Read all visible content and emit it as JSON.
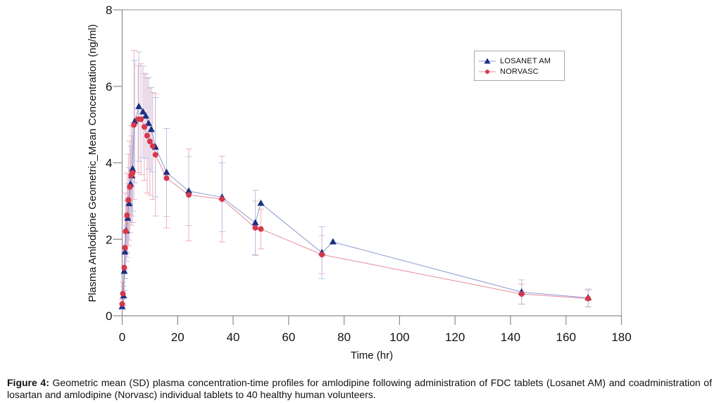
{
  "chart_data": {
    "type": "line",
    "title": "",
    "xlabel": "Time (hr)",
    "ylabel": "Plasma Amlodipine Geometric_Mean Concentration (ng/ml)",
    "xlim": [
      0,
      180
    ],
    "ylim": [
      0,
      8
    ],
    "x_ticks": [
      "0",
      "20",
      "40",
      "60",
      "80",
      "100",
      "120",
      "140",
      "160",
      "180"
    ],
    "y_ticks": [
      "0",
      "2",
      "4",
      "6",
      "8"
    ],
    "grid": false,
    "error_bars": "SD",
    "legend": {
      "position": "top-right"
    },
    "series": [
      {
        "name": "LOSANET AM",
        "marker": "triangle",
        "color": "#1c2f84",
        "line_color": "#8d9bd0",
        "errorbar_color": "#bfc2e3",
        "points": [
          {
            "x": 0,
            "y": 0.24,
            "sd": 0.08
          },
          {
            "x": 0.5,
            "y": 0.52,
            "sd": 0.25
          },
          {
            "x": 0.75,
            "y": 1.16,
            "sd": 0.5
          },
          {
            "x": 1,
            "y": 1.67,
            "sd": 0.7
          },
          {
            "x": 1.5,
            "y": 2.22,
            "sd": 0.8
          },
          {
            "x": 2,
            "y": 2.55,
            "sd": 0.9
          },
          {
            "x": 2.5,
            "y": 2.93,
            "sd": 0.95
          },
          {
            "x": 3,
            "y": 3.44,
            "sd": 1.0
          },
          {
            "x": 3.5,
            "y": 3.66,
            "sd": 1.05
          },
          {
            "x": 3.75,
            "y": 3.84,
            "sd": 1.1
          },
          {
            "x": 4.5,
            "y": 5.08,
            "sd": 1.6
          },
          {
            "x": 6,
            "y": 5.47,
            "sd": 1.43
          },
          {
            "x": 7.5,
            "y": 5.33,
            "sd": 1.2
          },
          {
            "x": 8.5,
            "y": 5.22,
            "sd": 1.1
          },
          {
            "x": 9.5,
            "y": 5.03,
            "sd": 1.2
          },
          {
            "x": 10.5,
            "y": 4.87,
            "sd": 1.1
          },
          {
            "x": 12,
            "y": 4.41,
            "sd": 1.3
          },
          {
            "x": 16,
            "y": 3.75,
            "sd": 1.15
          },
          {
            "x": 24,
            "y": 3.26,
            "sd": 0.9
          },
          {
            "x": 36,
            "y": 3.1,
            "sd": 0.9
          },
          {
            "x": 48,
            "y": 2.43,
            "sd": 0.85
          },
          {
            "x": 50,
            "y": 2.94,
            "sd": null
          },
          {
            "x": 72,
            "y": 1.65,
            "sd": 0.68
          },
          {
            "x": 76,
            "y": 1.93,
            "sd": null
          },
          {
            "x": 144,
            "y": 0.62,
            "sd": 0.32
          },
          {
            "x": 168,
            "y": 0.47,
            "sd": 0.23
          }
        ]
      },
      {
        "name": "NORVASC",
        "marker": "circle",
        "color": "#d6384b",
        "line_color": "#e88a9c",
        "errorbar_color": "#eeb0be",
        "points": [
          {
            "x": 0,
            "y": 0.31,
            "sd": 0.12
          },
          {
            "x": 0.25,
            "y": 0.58,
            "sd": 0.3
          },
          {
            "x": 0.75,
            "y": 1.26,
            "sd": 0.6
          },
          {
            "x": 1,
            "y": 1.78,
            "sd": 0.8
          },
          {
            "x": 1.25,
            "y": 2.21,
            "sd": 1.0
          },
          {
            "x": 1.75,
            "y": 2.63,
            "sd": 1.1
          },
          {
            "x": 2.25,
            "y": 3.03,
            "sd": 1.2
          },
          {
            "x": 2.75,
            "y": 3.37,
            "sd": 1.2
          },
          {
            "x": 3.25,
            "y": 3.67,
            "sd": 1.3
          },
          {
            "x": 3.75,
            "y": 3.74,
            "sd": 1.3
          },
          {
            "x": 4.25,
            "y": 4.99,
            "sd": 1.95
          },
          {
            "x": 5.75,
            "y": 5.14,
            "sd": 1.4
          },
          {
            "x": 6.75,
            "y": 5.14,
            "sd": 1.45
          },
          {
            "x": 8,
            "y": 4.94,
            "sd": 1.4
          },
          {
            "x": 9,
            "y": 4.71,
            "sd": 1.5
          },
          {
            "x": 10,
            "y": 4.56,
            "sd": 1.4
          },
          {
            "x": 11,
            "y": 4.44,
            "sd": 1.4
          },
          {
            "x": 12,
            "y": 4.21,
            "sd": 1.6
          },
          {
            "x": 16,
            "y": 3.6,
            "sd": 1.3
          },
          {
            "x": 24,
            "y": 3.16,
            "sd": 1.2
          },
          {
            "x": 36,
            "y": 3.05,
            "sd": 1.12
          },
          {
            "x": 48,
            "y": 2.3,
            "sd": 0.7
          },
          {
            "x": 50,
            "y": 2.27,
            "sd": 0.52
          },
          {
            "x": 72,
            "y": 1.6,
            "sd": 0.5
          },
          {
            "x": 144,
            "y": 0.57,
            "sd": 0.26
          },
          {
            "x": 168,
            "y": 0.45,
            "sd": 0.22
          }
        ]
      }
    ]
  },
  "caption": {
    "label": "Figure 4:",
    "text": " Geometric mean (SD) plasma concentration-time profiles for amlodipine following administration of FDC tablets (Losanet AM) and coadministration of losartan and amlodipine (Norvasc) individual tablets to 40 healthy human volunteers."
  }
}
